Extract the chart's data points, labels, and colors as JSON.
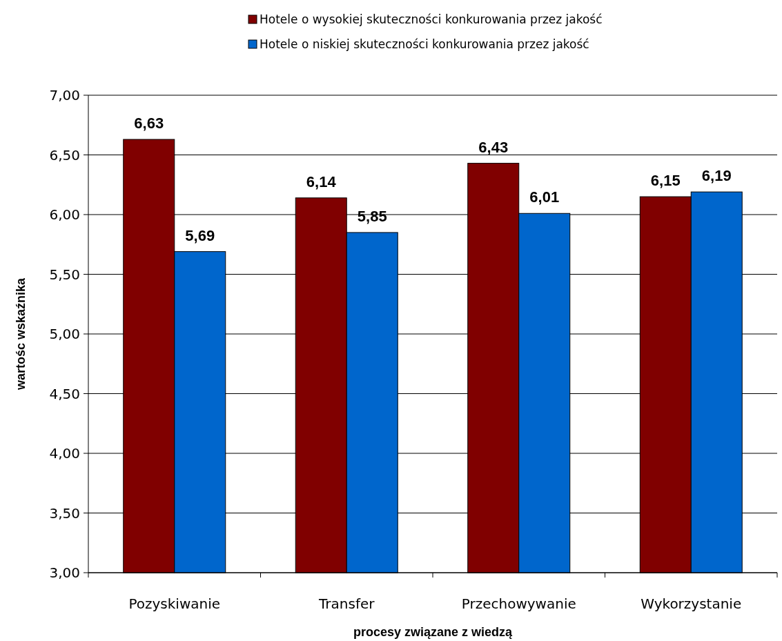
{
  "chart_data": {
    "type": "bar",
    "xlabel": "procesy związane z wiedzą",
    "ylabel": "wartośc wskaźnika",
    "categories": [
      "Pozyskiwanie",
      "Transfer",
      "Przechowywanie",
      "Wykorzystanie"
    ],
    "series": [
      {
        "name": "Hotele o wysokiej skuteczności konkurowania przez jakość",
        "color": "#800000",
        "values": [
          6.63,
          6.14,
          6.43,
          6.15
        ],
        "value_labels": [
          "6,63",
          "6,14",
          "6,43",
          "6,15"
        ]
      },
      {
        "name": "Hotele o niskiej skuteczności konkurowania przez jakość",
        "color": "#0066cc",
        "values": [
          5.69,
          5.85,
          6.01,
          6.19
        ],
        "value_labels": [
          "5,69",
          "5,85",
          "6,01",
          "6,19"
        ]
      }
    ],
    "ylim": [
      3,
      7
    ],
    "yticks": [
      {
        "value": 3,
        "label": "3,00"
      },
      {
        "value": 3.5,
        "label": "3,50"
      },
      {
        "value": 4,
        "label": "4,00"
      },
      {
        "value": 4.5,
        "label": "4,50"
      },
      {
        "value": 5,
        "label": "5,00"
      },
      {
        "value": 5.5,
        "label": "5,50"
      },
      {
        "value": 6,
        "label": "6,00"
      },
      {
        "value": 6.5,
        "label": "6,50"
      },
      {
        "value": 7,
        "label": "7,00"
      }
    ],
    "grid": "y",
    "legend": "top"
  }
}
